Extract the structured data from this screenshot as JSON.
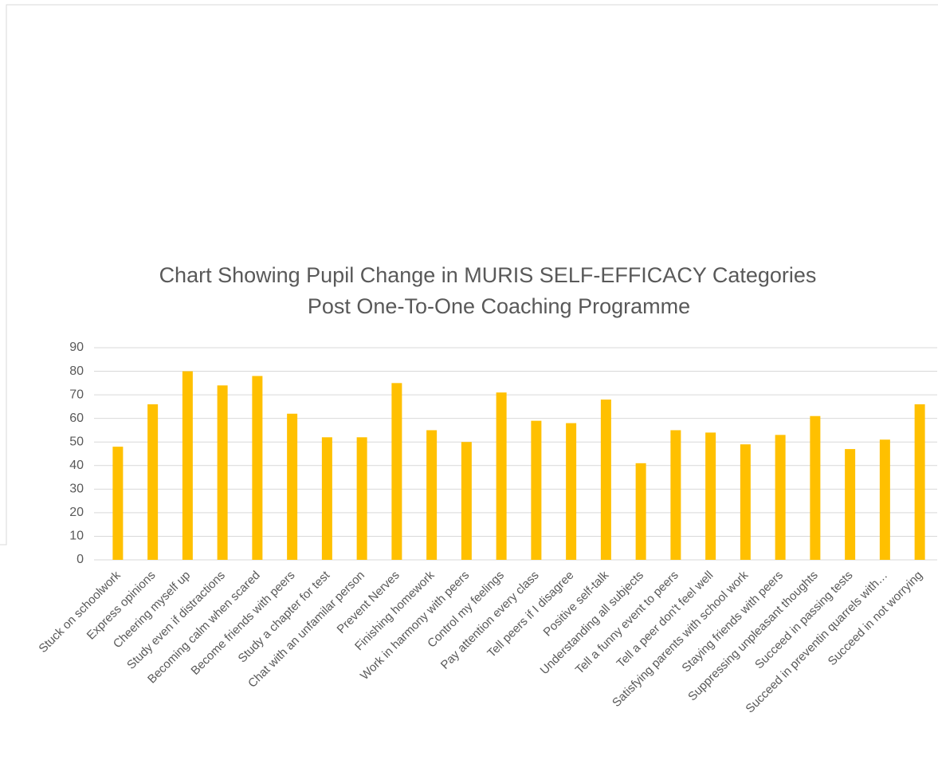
{
  "chart_data": {
    "type": "bar",
    "title": [
      "Chart Showing Pupil Change in MURIS SELF-EFFICACY Categories",
      "Post One-To-One Coaching Programme"
    ],
    "categories": [
      "Stuck on schoolwork",
      "Express opinions",
      "Cheering myself up",
      "Study even if distractions",
      "Becoming calm when scared",
      "Become friends with peers",
      "Study a chapter for test",
      "Chat with an unfamilar person",
      "Prevent Nerves",
      "Finishing homework",
      "Work in harmony with peers",
      "Control my feelings",
      "Pay attention every class",
      "Tell peers if I disagree",
      "Positive self-talk",
      "Understanding all subjects",
      "Tell a funny event to peers",
      "Tell a peer don't feel well",
      "Satisfying parents with school work",
      "Staying friends with peers",
      "Suppressing unpleasant thoughts",
      "Succeed in passing tests",
      "Succeed in preventin quarrels with…",
      "Succeed in not worrying"
    ],
    "values": [
      48,
      66,
      80,
      74,
      78,
      62,
      52,
      52,
      75,
      55,
      50,
      71,
      59,
      58,
      68,
      41,
      55,
      54,
      49,
      53,
      61,
      47,
      51,
      66
    ],
    "color": "#ffc000",
    "ylim": [
      0,
      90
    ],
    "yticks": [
      0,
      10,
      20,
      30,
      40,
      50,
      60,
      70,
      80,
      90
    ],
    "grid": true
  }
}
